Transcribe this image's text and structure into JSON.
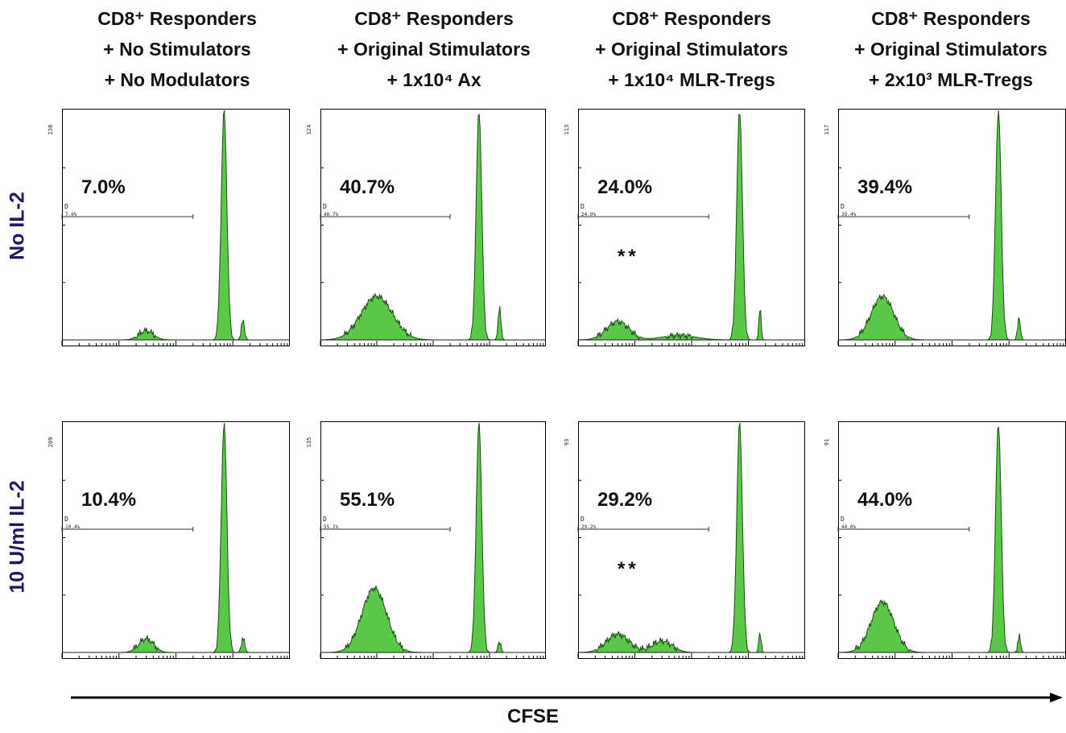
{
  "columns": [
    {
      "lines": [
        "CD8⁺ Responders",
        "+ No Stimulators",
        "+ No Modulators"
      ]
    },
    {
      "lines": [
        "CD8⁺ Responders",
        "+ Original Stimulators",
        "+ 1x10⁴ Ax"
      ]
    },
    {
      "lines": [
        "CD8⁺ Responders",
        "+ Original Stimulators",
        "+ 1x10⁴ MLR-Tregs"
      ]
    },
    {
      "lines": [
        "CD8⁺ Responders",
        "+ Original Stimulators",
        "+ 2x10³ MLR-Tregs"
      ]
    }
  ],
  "rows": [
    {
      "label": "No IL-2"
    },
    {
      "label": "10 U/ml IL-2"
    }
  ],
  "x_axis_label": "CFSE",
  "colors": {
    "fill": "#5cc84a",
    "stroke": "#1c4a16",
    "row_label": "#1f1a66",
    "text": "#111111"
  },
  "chart_data": {
    "type": "area",
    "x_scale": "log",
    "xlim": [
      0.1,
      1000
    ],
    "gate_label": "D",
    "panels": [
      {
        "row": 0,
        "col": 0,
        "ymax_label": "238",
        "percent": "7.0%",
        "gate_text": "7.0%",
        "stars": "",
        "gate_range": [
          0.1,
          20
        ],
        "peaks": [
          {
            "x": 3,
            "h": 0.04,
            "w": 0.13
          },
          {
            "x": 70,
            "h": 1.0,
            "w": 0.05
          },
          {
            "x": 150,
            "h": 0.08,
            "w": 0.03
          }
        ]
      },
      {
        "row": 0,
        "col": 1,
        "ymax_label": "124",
        "percent": "40.7%",
        "gate_text": "40.7%",
        "stars": "",
        "gate_range": [
          0.1,
          20
        ],
        "peaks": [
          {
            "x": 1.0,
            "h": 0.19,
            "w": 0.28
          },
          {
            "x": 65,
            "h": 1.0,
            "w": 0.05
          },
          {
            "x": 150,
            "h": 0.14,
            "w": 0.025
          }
        ]
      },
      {
        "row": 0,
        "col": 2,
        "ymax_label": "113",
        "percent": "24.0%",
        "gate_text": "24.0%",
        "stars": "**",
        "gate_range": [
          0.1,
          20
        ],
        "peaks": [
          {
            "x": 0.5,
            "h": 0.08,
            "w": 0.2
          },
          {
            "x": 6,
            "h": 0.02,
            "w": 0.3
          },
          {
            "x": 70,
            "h": 1.0,
            "w": 0.05
          },
          {
            "x": 160,
            "h": 0.14,
            "w": 0.02
          }
        ]
      },
      {
        "row": 0,
        "col": 3,
        "ymax_label": "117",
        "percent": "39.4%",
        "gate_text": "39.4%",
        "stars": "",
        "gate_range": [
          0.1,
          20
        ],
        "peaks": [
          {
            "x": 0.6,
            "h": 0.19,
            "w": 0.2
          },
          {
            "x": 65,
            "h": 1.0,
            "w": 0.05
          },
          {
            "x": 150,
            "h": 0.09,
            "w": 0.025
          }
        ]
      },
      {
        "row": 1,
        "col": 0,
        "ymax_label": "209",
        "percent": "10.4%",
        "gate_text": "10.4%",
        "stars": "",
        "gate_range": [
          0.1,
          20
        ],
        "peaks": [
          {
            "x": 3,
            "h": 0.06,
            "w": 0.13
          },
          {
            "x": 70,
            "h": 1.0,
            "w": 0.05
          },
          {
            "x": 150,
            "h": 0.06,
            "w": 0.03
          }
        ]
      },
      {
        "row": 1,
        "col": 1,
        "ymax_label": "135",
        "percent": "55.1%",
        "gate_text": "55.1%",
        "stars": "",
        "gate_range": [
          0.1,
          20
        ],
        "peaks": [
          {
            "x": 0.9,
            "h": 0.28,
            "w": 0.22
          },
          {
            "x": 65,
            "h": 1.0,
            "w": 0.05
          },
          {
            "x": 150,
            "h": 0.05,
            "w": 0.025
          }
        ]
      },
      {
        "row": 1,
        "col": 2,
        "ymax_label": "93",
        "percent": "29.2%",
        "gate_text": "29.2%",
        "stars": "**",
        "gate_range": [
          0.1,
          20
        ],
        "peaks": [
          {
            "x": 0.5,
            "h": 0.08,
            "w": 0.2
          },
          {
            "x": 3,
            "h": 0.05,
            "w": 0.18
          },
          {
            "x": 70,
            "h": 1.0,
            "w": 0.05
          },
          {
            "x": 160,
            "h": 0.09,
            "w": 0.02
          }
        ]
      },
      {
        "row": 1,
        "col": 3,
        "ymax_label": "91",
        "percent": "44.0%",
        "gate_text": "44.0%",
        "stars": "",
        "gate_range": [
          0.1,
          20
        ],
        "peaks": [
          {
            "x": 0.6,
            "h": 0.22,
            "w": 0.2
          },
          {
            "x": 65,
            "h": 1.0,
            "w": 0.05
          },
          {
            "x": 150,
            "h": 0.07,
            "w": 0.025
          }
        ]
      }
    ]
  }
}
